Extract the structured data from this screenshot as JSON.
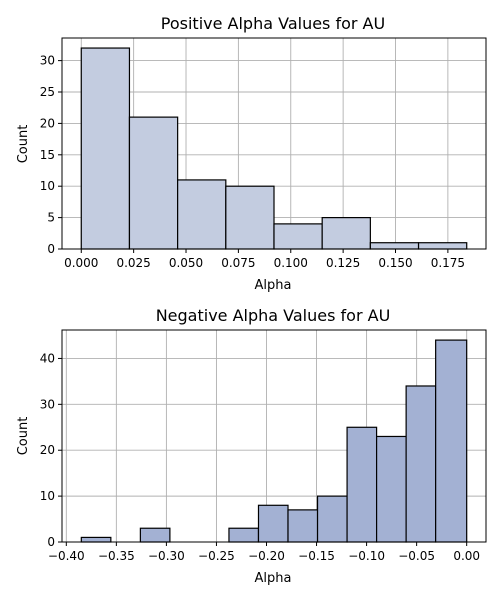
{
  "chart_data": [
    {
      "type": "bar",
      "title": "Positive Alpha Values for AU",
      "xlabel": "Alpha",
      "ylabel": "Count",
      "color": "#c3cce0",
      "grid": true,
      "bins": [
        {
          "x0": 0.0,
          "x1": 0.023,
          "count": 32
        },
        {
          "x0": 0.023,
          "x1": 0.046,
          "count": 21
        },
        {
          "x0": 0.046,
          "x1": 0.069,
          "count": 11
        },
        {
          "x0": 0.069,
          "x1": 0.092,
          "count": 10
        },
        {
          "x0": 0.092,
          "x1": 0.115,
          "count": 4
        },
        {
          "x0": 0.115,
          "x1": 0.138,
          "count": 5
        },
        {
          "x0": 0.138,
          "x1": 0.161,
          "count": 1
        },
        {
          "x0": 0.161,
          "x1": 0.184,
          "count": 1
        }
      ],
      "xlim": [
        -0.0092,
        0.1932
      ],
      "ylim": [
        0,
        33.6
      ],
      "xticks": [
        0.0,
        0.025,
        0.05,
        0.075,
        0.1,
        0.125,
        0.15,
        0.175
      ],
      "xtick_labels": [
        "0.000",
        "0.025",
        "0.050",
        "0.075",
        "0.100",
        "0.125",
        "0.150",
        "0.175"
      ],
      "yticks": [
        0,
        5,
        10,
        15,
        20,
        25,
        30
      ],
      "ytick_labels": [
        "0",
        "5",
        "10",
        "15",
        "20",
        "25",
        "30"
      ]
    },
    {
      "type": "bar",
      "title": "Negative Alpha Values for AU",
      "xlabel": "Alpha",
      "ylabel": "Count",
      "color": "#a3b1d3",
      "grid": true,
      "bins": [
        {
          "x0": -0.385,
          "x1": -0.3555,
          "count": 1
        },
        {
          "x0": -0.3555,
          "x1": -0.326,
          "count": 0
        },
        {
          "x0": -0.326,
          "x1": -0.2965,
          "count": 3
        },
        {
          "x0": -0.2965,
          "x1": -0.267,
          "count": 0
        },
        {
          "x0": -0.267,
          "x1": -0.2375,
          "count": 0
        },
        {
          "x0": -0.2375,
          "x1": -0.208,
          "count": 3
        },
        {
          "x0": -0.208,
          "x1": -0.1785,
          "count": 8
        },
        {
          "x0": -0.1785,
          "x1": -0.149,
          "count": 7
        },
        {
          "x0": -0.149,
          "x1": -0.1195,
          "count": 10
        },
        {
          "x0": -0.1195,
          "x1": -0.09,
          "count": 25
        },
        {
          "x0": -0.09,
          "x1": -0.0605,
          "count": 23
        },
        {
          "x0": -0.0605,
          "x1": -0.031,
          "count": 34
        },
        {
          "x0": -0.031,
          "x1": 0.0,
          "count": 44
        }
      ],
      "xlim": [
        -0.4043,
        0.0193
      ],
      "ylim": [
        0,
        46.2
      ],
      "xticks": [
        -0.4,
        -0.35,
        -0.3,
        -0.25,
        -0.2,
        -0.15,
        -0.1,
        -0.05,
        0.0
      ],
      "xtick_labels": [
        "−0.40",
        "−0.35",
        "−0.30",
        "−0.25",
        "−0.20",
        "−0.15",
        "−0.10",
        "−0.05",
        "0.00"
      ],
      "yticks": [
        0,
        10,
        20,
        30,
        40
      ],
      "ytick_labels": [
        "0",
        "10",
        "20",
        "30",
        "40"
      ]
    }
  ]
}
